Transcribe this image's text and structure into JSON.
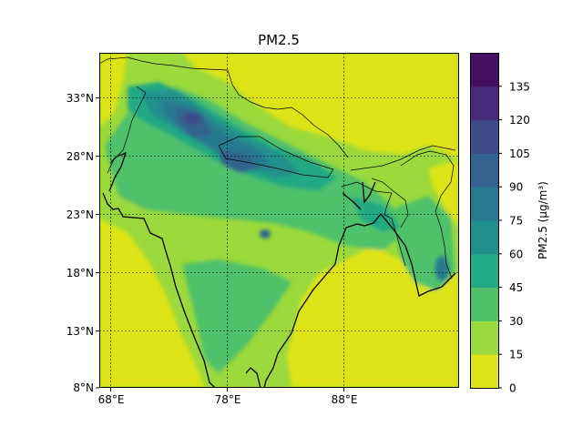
{
  "title": "PM2.5",
  "colorbar": {
    "label": "PM2.5 (µg/m³)",
    "ticks": [
      "0",
      "15",
      "30",
      "45",
      "60",
      "75",
      "90",
      "105",
      "120",
      "135"
    ],
    "colors": [
      "#dde318",
      "#9bd93c",
      "#4fc16b",
      "#23a983",
      "#20908d",
      "#287a8e",
      "#31638e",
      "#3e4a89",
      "#472b7a",
      "#450f61"
    ]
  },
  "map": {
    "lon_ticks": [
      "68°E",
      "78°E",
      "88°E"
    ],
    "lat_ticks": [
      "33°N",
      "28°N",
      "23°N",
      "18°N",
      "13°N",
      "8°N"
    ],
    "lon_values": [
      68,
      78,
      88
    ],
    "lat_values": [
      33,
      28,
      23,
      18,
      13,
      8
    ],
    "extent": {
      "lon_min": 67,
      "lon_max": 98,
      "lat_min": 8,
      "lat_max": 37
    },
    "gridlines": true
  },
  "chart_data": {
    "type": "heatmap",
    "title": "PM2.5",
    "colorbar_label": "PM2.5 (µg/m³)",
    "levels": [
      0,
      15,
      30,
      45,
      60,
      75,
      90,
      105,
      120,
      135
    ],
    "xticks": [
      "68°E",
      "78°E",
      "88°E"
    ],
    "yticks": [
      "33°N",
      "28°N",
      "23°N",
      "18°N",
      "13°N",
      "8°N"
    ]
  }
}
